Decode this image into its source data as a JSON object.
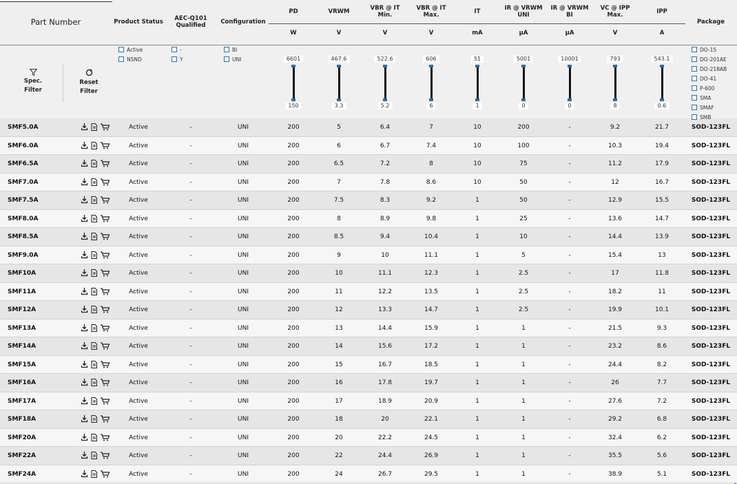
{
  "header": {
    "columns": [
      {
        "lines": [
          "Part Number"
        ]
      },
      {
        "lines": [
          "Product Status"
        ]
      },
      {
        "lines": [
          "AEC-Q101",
          "Qualified"
        ]
      },
      {
        "lines": [
          "Configuration"
        ]
      },
      {
        "lines": [
          "PD"
        ],
        "unit": "W"
      },
      {
        "lines": [
          "VRWM"
        ],
        "unit": "V"
      },
      {
        "lines": [
          "VBR @ IT",
          "Min."
        ],
        "unit": "V"
      },
      {
        "lines": [
          "VBR @ IT",
          "Max."
        ],
        "unit": "V"
      },
      {
        "lines": [
          "IT"
        ],
        "unit": "mA"
      },
      {
        "lines": [
          "IR @ VRWM",
          "UNI"
        ],
        "unit": "µA"
      },
      {
        "lines": [
          "IR @ VRWM",
          "BI"
        ],
        "unit": "µA"
      },
      {
        "lines": [
          "VC @ IPP",
          "Max."
        ],
        "unit": "V"
      },
      {
        "lines": [
          "IPP"
        ],
        "unit": "A"
      },
      {
        "lines": [
          "Package"
        ]
      }
    ]
  },
  "filters": {
    "spec_filter": [
      "Spec.",
      "Filter"
    ],
    "reset_filter": [
      "Reset",
      "Filter"
    ],
    "status": [
      "Active",
      "NSND"
    ],
    "aec": [
      "-",
      "Y"
    ],
    "configuration": [
      "BI",
      "UNI"
    ],
    "package": [
      "DO-15",
      "DO-201AE",
      "DO-218AB",
      "DO-41",
      "P-600",
      "SMA",
      "SMAF",
      "SMB"
    ],
    "sliders": [
      {
        "max": "6601",
        "min": "150"
      },
      {
        "max": "467.6",
        "min": "3.3"
      },
      {
        "max": "522.6",
        "min": "5.2"
      },
      {
        "max": "606",
        "min": "6"
      },
      {
        "max": "51",
        "min": "1"
      },
      {
        "max": "5001",
        "min": "0"
      },
      {
        "max": "10001",
        "min": "0"
      },
      {
        "max": "793",
        "min": "8"
      },
      {
        "max": "543.1",
        "min": "0.6"
      }
    ]
  },
  "table": {
    "rows": [
      [
        "SMF5.0A",
        "Active",
        "-",
        "UNI",
        "200",
        "5",
        "6.4",
        "7",
        "10",
        "200",
        "-",
        "9.2",
        "21.7",
        "SOD-123FL"
      ],
      [
        "SMF6.0A",
        "Active",
        "-",
        "UNI",
        "200",
        "6",
        "6.7",
        "7.4",
        "10",
        "100",
        "-",
        "10.3",
        "19.4",
        "SOD-123FL"
      ],
      [
        "SMF6.5A",
        "Active",
        "-",
        "UNI",
        "200",
        "6.5",
        "7.2",
        "8",
        "10",
        "75",
        "-",
        "11.2",
        "17.9",
        "SOD-123FL"
      ],
      [
        "SMF7.0A",
        "Active",
        "-",
        "UNI",
        "200",
        "7",
        "7.8",
        "8.6",
        "10",
        "50",
        "-",
        "12",
        "16.7",
        "SOD-123FL"
      ],
      [
        "SMF7.5A",
        "Active",
        "-",
        "UNI",
        "200",
        "7.5",
        "8.3",
        "9.2",
        "1",
        "50",
        "-",
        "12.9",
        "15.5",
        "SOD-123FL"
      ],
      [
        "SMF8.0A",
        "Active",
        "-",
        "UNI",
        "200",
        "8",
        "8.9",
        "9.8",
        "1",
        "25",
        "-",
        "13.6",
        "14.7",
        "SOD-123FL"
      ],
      [
        "SMF8.5A",
        "Active",
        "-",
        "UNI",
        "200",
        "8.5",
        "9.4",
        "10.4",
        "1",
        "10",
        "-",
        "14.4",
        "13.9",
        "SOD-123FL"
      ],
      [
        "SMF9.0A",
        "Active",
        "-",
        "UNI",
        "200",
        "9",
        "10",
        "11.1",
        "1",
        "5",
        "-",
        "15.4",
        "13",
        "SOD-123FL"
      ],
      [
        "SMF10A",
        "Active",
        "-",
        "UNI",
        "200",
        "10",
        "11.1",
        "12.3",
        "1",
        "2.5",
        "-",
        "17",
        "11.8",
        "SOD-123FL"
      ],
      [
        "SMF11A",
        "Active",
        "-",
        "UNI",
        "200",
        "11",
        "12.2",
        "13.5",
        "1",
        "2.5",
        "-",
        "18.2",
        "11",
        "SOD-123FL"
      ],
      [
        "SMF12A",
        "Active",
        "-",
        "UNI",
        "200",
        "12",
        "13.3",
        "14.7",
        "1",
        "2.5",
        "-",
        "19.9",
        "10.1",
        "SOD-123FL"
      ],
      [
        "SMF13A",
        "Active",
        "-",
        "UNI",
        "200",
        "13",
        "14.4",
        "15.9",
        "1",
        "1",
        "-",
        "21.5",
        "9.3",
        "SOD-123FL"
      ],
      [
        "SMF14A",
        "Active",
        "-",
        "UNI",
        "200",
        "14",
        "15.6",
        "17.2",
        "1",
        "1",
        "-",
        "23.2",
        "8.6",
        "SOD-123FL"
      ],
      [
        "SMF15A",
        "Active",
        "-",
        "UNI",
        "200",
        "15",
        "16.7",
        "18.5",
        "1",
        "1",
        "-",
        "24.4",
        "8.2",
        "SOD-123FL"
      ],
      [
        "SMF16A",
        "Active",
        "-",
        "UNI",
        "200",
        "16",
        "17.8",
        "19.7",
        "1",
        "1",
        "-",
        "26",
        "7.7",
        "SOD-123FL"
      ],
      [
        "SMF17A",
        "Active",
        "-",
        "UNI",
        "200",
        "17",
        "18.9",
        "20.9",
        "1",
        "1",
        "-",
        "27.6",
        "7.2",
        "SOD-123FL"
      ],
      [
        "SMF18A",
        "Active",
        "-",
        "UNI",
        "200",
        "18",
        "20",
        "22.1",
        "1",
        "1",
        "-",
        "29.2",
        "6.8",
        "SOD-123FL"
      ],
      [
        "SMF20A",
        "Active",
        "-",
        "UNI",
        "200",
        "20",
        "22.2",
        "24.5",
        "1",
        "1",
        "-",
        "32.4",
        "6.2",
        "SOD-123FL"
      ],
      [
        "SMF22A",
        "Active",
        "-",
        "UNI",
        "200",
        "22",
        "24.4",
        "26.9",
        "1",
        "1",
        "-",
        "35.5",
        "5.6",
        "SOD-123FL"
      ],
      [
        "SMF24A",
        "Active",
        "-",
        "UNI",
        "200",
        "24",
        "26.7",
        "29.5",
        "1",
        "1",
        "-",
        "38.9",
        "5.1",
        "SOD-123FL"
      ]
    ]
  }
}
